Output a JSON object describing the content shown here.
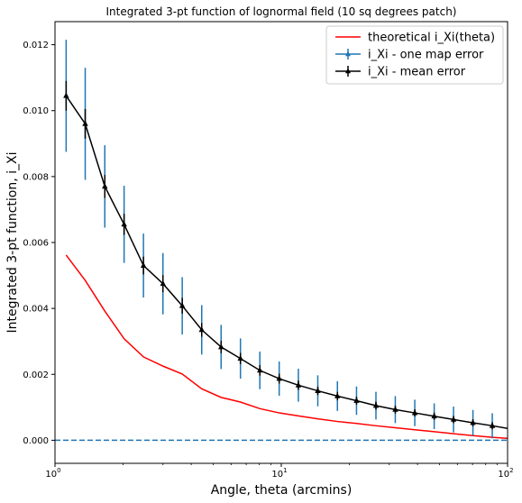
{
  "chart_data": {
    "type": "line",
    "title": "Integrated 3-pt function of lognormal field (10 sq degrees patch)",
    "xlabel": "Angle, theta (arcmins)",
    "ylabel": "Integrated 3-pt function, i_Xi",
    "xscale": "log",
    "xlim": [
      1,
      100
    ],
    "ylim": [
      -0.0007,
      0.0127
    ],
    "x_ticks": [
      {
        "value": 1,
        "base": "10",
        "exp": "0"
      },
      {
        "value": 10,
        "base": "10",
        "exp": "1"
      },
      {
        "value": 100,
        "base": "10",
        "exp": "2"
      }
    ],
    "y_ticks": [
      0,
      0.002,
      0.004,
      0.006,
      0.008,
      0.01,
      0.012
    ],
    "y_tick_labels": [
      "0.000",
      "0.002",
      "0.004",
      "0.006",
      "0.008",
      "0.010",
      "0.012"
    ],
    "grid": false,
    "legend_position": "top-right",
    "colors": {
      "theory": "#ff0000",
      "one_map": "#1f77b4",
      "mean": "#000000",
      "zero_line": "#1f77b4"
    },
    "series": [
      {
        "name": "theoretical i_Xi(theta)",
        "style": "line",
        "x": [
          1.12,
          1.36,
          1.66,
          2.02,
          2.46,
          3.0,
          3.65,
          4.45,
          5.42,
          6.6,
          8.04,
          9.79,
          11.9,
          14.5,
          17.7,
          21.5,
          26.2,
          31.9,
          38.9,
          47.4,
          57.7,
          70.3,
          85.6,
          100
        ],
        "y": [
          0.00562,
          0.00485,
          0.00392,
          0.00308,
          0.00253,
          0.00225,
          0.00201,
          0.00156,
          0.0013,
          0.00116,
          0.00096,
          0.00083,
          0.00074,
          0.00065,
          0.00057,
          0.00051,
          0.00044,
          0.00038,
          0.00032,
          0.00026,
          0.0002,
          0.00014,
          9e-05,
          6e-05
        ]
      },
      {
        "name": "i_Xi - one map error",
        "style": "errorbar",
        "x": [
          1.12,
          1.36,
          1.66,
          2.02,
          2.46,
          3.0,
          3.65,
          4.45,
          5.42,
          6.6,
          8.04,
          9.79,
          11.9,
          14.5,
          17.7,
          21.5,
          26.2,
          31.9,
          38.9,
          47.4,
          57.7,
          70.3,
          85.6
        ],
        "y": [
          0.01045,
          0.0096,
          0.0077,
          0.00655,
          0.0053,
          0.00475,
          0.00408,
          0.00335,
          0.00283,
          0.00248,
          0.00212,
          0.00187,
          0.00167,
          0.0015,
          0.00134,
          0.0012,
          0.00105,
          0.00093,
          0.00083,
          0.00073,
          0.00063,
          0.00053,
          0.00044
        ],
        "err": [
          0.0017,
          0.0017,
          0.00125,
          0.00117,
          0.00097,
          0.00093,
          0.00087,
          0.00075,
          0.00067,
          0.00061,
          0.00057,
          0.00052,
          0.0005,
          0.00047,
          0.00045,
          0.00043,
          0.00042,
          0.00041,
          0.0004,
          0.00039,
          0.00039,
          0.00039,
          0.00038
        ]
      },
      {
        "name": "i_Xi - mean error",
        "style": "errorbar-line",
        "x": [
          1.12,
          1.36,
          1.66,
          2.02,
          2.46,
          3.0,
          3.65,
          4.45,
          5.42,
          6.6,
          8.04,
          9.79,
          11.9,
          14.5,
          17.7,
          21.5,
          26.2,
          31.9,
          38.9,
          47.4,
          57.7,
          70.3,
          85.6,
          100
        ],
        "y": [
          0.01045,
          0.0096,
          0.0077,
          0.00655,
          0.0053,
          0.00475,
          0.00408,
          0.00335,
          0.00283,
          0.00248,
          0.00212,
          0.00187,
          0.00167,
          0.0015,
          0.00134,
          0.0012,
          0.00105,
          0.00093,
          0.00083,
          0.00073,
          0.00063,
          0.00053,
          0.00044,
          0.00036
        ],
        "err": [
          0.00045,
          0.00045,
          0.00035,
          0.00032,
          0.00027,
          0.00026,
          0.00024,
          0.00021,
          0.00019,
          0.00017,
          0.00016,
          0.00015,
          0.00014,
          0.00013,
          0.00013,
          0.00012,
          0.00012,
          0.00012,
          0.00011,
          0.00011,
          0.00011,
          0.00011,
          0.00011,
          0
        ]
      }
    ],
    "annotations": [
      {
        "type": "hline",
        "y": 0,
        "style": "dashed"
      }
    ]
  }
}
